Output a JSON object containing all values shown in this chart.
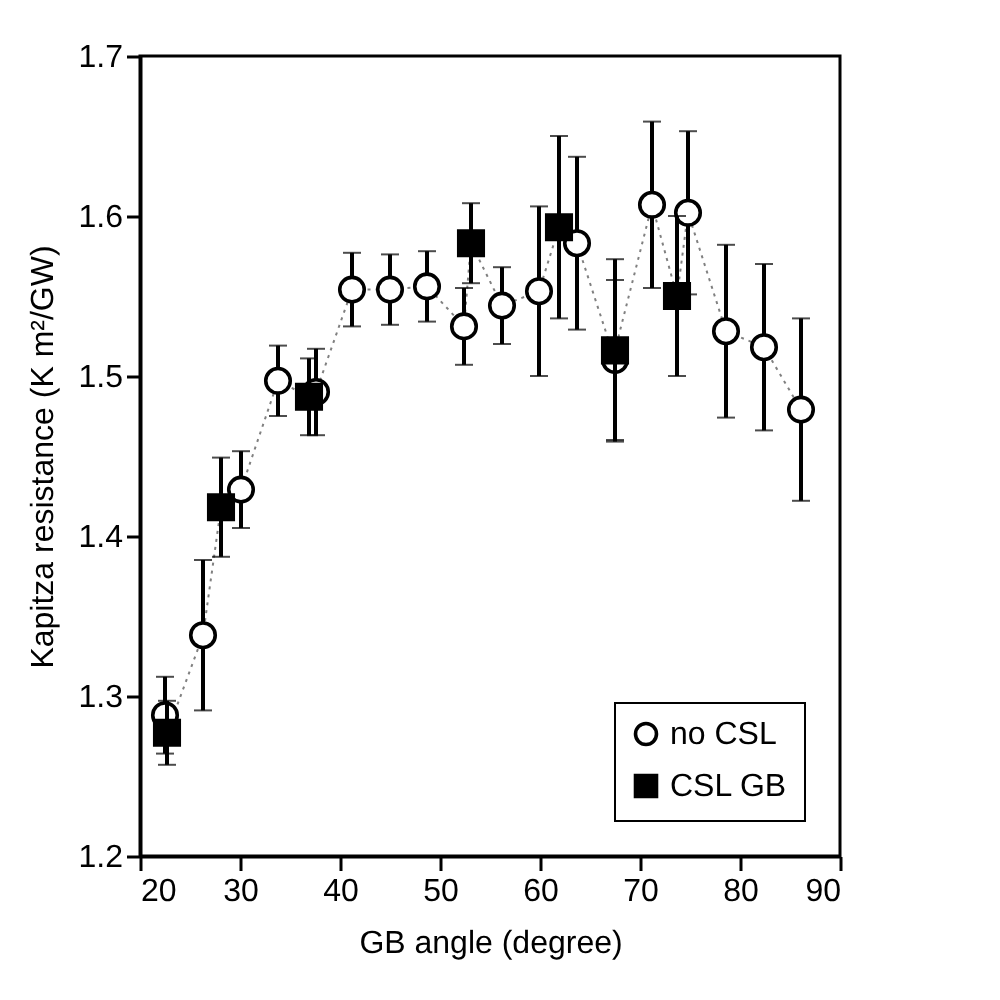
{
  "chart_data": {
    "type": "scatter",
    "xlabel": "GB angle (degree)",
    "ylabel": "Kapitza resistance (K m²/GW)",
    "xlim": [
      20,
      90
    ],
    "xticks": [
      20,
      30,
      40,
      50,
      60,
      70,
      80,
      90
    ],
    "ylim": [
      1.2,
      1.7
    ],
    "yticks": [
      1.2,
      1.3,
      1.4,
      1.5,
      1.6,
      1.7
    ],
    "grid": false,
    "legend": "bottom right",
    "series": [
      {
        "type": "line",
        "color": "#808080",
        "line_style": "dotted",
        "marker": "none",
        "x": [
          22.5,
          22.7,
          26.3,
          28.1,
          30.1,
          33.8,
          36.9,
          37.6,
          41.2,
          45.0,
          48.7,
          52.4,
          53.1,
          56.2,
          59.9,
          61.9,
          63.7,
          67.5,
          67.5,
          71.2,
          73.7,
          74.8,
          78.6,
          82.4,
          86.1
        ],
        "values": [
          1.288,
          1.277,
          1.338,
          1.418,
          1.429,
          1.497,
          1.487,
          1.49,
          1.554,
          1.554,
          1.556,
          1.531,
          1.583,
          1.544,
          1.553,
          1.593,
          1.583,
          1.51,
          1.516,
          1.607,
          1.55,
          1.602,
          1.528,
          1.518,
          1.479
        ]
      },
      {
        "name": "no CSL",
        "color": "#000000",
        "marker": "circle",
        "x": [
          22.5,
          26.3,
          30.1,
          33.8,
          37.6,
          41.2,
          45.0,
          48.7,
          52.4,
          56.2,
          59.9,
          63.7,
          67.5,
          71.2,
          74.8,
          78.6,
          82.4,
          86.1
        ],
        "values": [
          1.288,
          1.338,
          1.429,
          1.497,
          1.49,
          1.554,
          1.554,
          1.556,
          1.531,
          1.544,
          1.553,
          1.583,
          1.51,
          1.607,
          1.602,
          1.528,
          1.518,
          1.479
        ],
        "errors": [
          0.024,
          0.047,
          0.024,
          0.022,
          0.027,
          0.023,
          0.022,
          0.022,
          0.024,
          0.024,
          0.053,
          0.054,
          0.05,
          0.052,
          0.051,
          0.054,
          0.052,
          0.057
        ]
      },
      {
        "name": "CSL GB",
        "color": "#000000",
        "marker": "square",
        "x": [
          22.7,
          28.1,
          36.9,
          53.1,
          61.9,
          67.5,
          73.7
        ],
        "values": [
          1.277,
          1.418,
          1.487,
          1.583,
          1.593,
          1.516,
          1.55
        ],
        "errors": [
          0.02,
          0.031,
          0.024,
          0.025,
          0.057,
          0.057,
          0.05
        ]
      }
    ]
  }
}
